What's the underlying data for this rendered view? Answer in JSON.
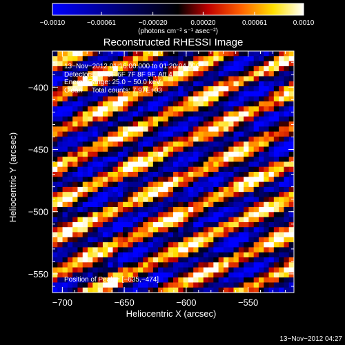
{
  "chart_data": {
    "type": "heatmap",
    "title": "Reconstructed RHESSI Image",
    "xlabel": "Heliocentric X (arcsec)",
    "ylabel": "Heliocentric Y (arcsec)",
    "xlim": [
      -708,
      -513
    ],
    "ylim": [
      -565,
      -371
    ],
    "x_ticks": [
      -700,
      -650,
      -600,
      -550
    ],
    "y_ticks": [
      -400,
      -450,
      -500,
      -550
    ],
    "x_tick_labels": [
      "−700",
      "−650",
      "−600",
      "−550"
    ],
    "y_tick_labels": [
      "−400",
      "−450",
      "−500",
      "−550"
    ],
    "colorbar": {
      "range": [
        -0.001,
        0.001
      ],
      "ticks": [
        -0.001,
        -0.00061,
        -0.0002,
        0.0002,
        0.00061,
        0.001
      ],
      "tick_labels": [
        "−0.0010",
        "−0.00061",
        "−0.00020",
        "0.00020",
        "0.00061",
        "0.0010"
      ],
      "unit_label": "(photons cm⁻² s⁻¹ asec⁻²)",
      "colormap": "blue-black-red-yellow-white"
    },
    "annotations": [
      "13−Nov−2012 01:16:00.000 to 01:20:04.000",
      "Detectors: 3F 5F 6F 7F 8F 9F, Att 4",
      "Energy Range: 25.0 − 50.0 keV",
      "Clean     Total counts: 7.97E+03",
      "Position of Peak = [−635,−474]"
    ],
    "peak_position": [
      -635,
      -474
    ],
    "pattern": "diagonal stripes from upper-left to lower-right, alternating bright yellow/white and dark blue/black",
    "grid": false
  },
  "footer": {
    "timestamp": "13−Nov−2012 04:27"
  }
}
